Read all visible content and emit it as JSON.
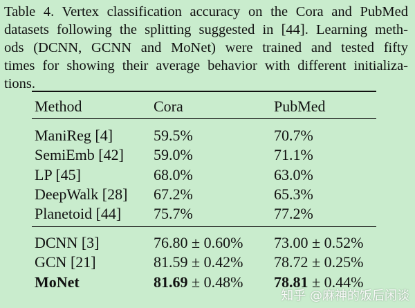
{
  "caption_lines": [
    "Table 4. Vertex classification accuracy on the Cora and PubMed",
    "datasets following the splitting suggested in [44]. Learning meth-",
    "ods (DCNN, GCNN and MoNet) were trained and tested fifty",
    "times for showing their average behavior with different initializa-",
    "tions."
  ],
  "table": {
    "headers": [
      "Method",
      "Cora",
      "PubMed"
    ],
    "group1": [
      {
        "method": "ManiReg [4]",
        "cora": "59.5%",
        "pubmed": "70.7%"
      },
      {
        "method": "SemiEmb [42]",
        "cora": "59.0%",
        "pubmed": "71.1%"
      },
      {
        "method": "LP [45]",
        "cora": "68.0%",
        "pubmed": "63.0%"
      },
      {
        "method": "DeepWalk [28]",
        "cora": "67.2%",
        "pubmed": "65.3%"
      },
      {
        "method": "Planetoid [44]",
        "cora": "75.7%",
        "pubmed": "77.2%"
      }
    ],
    "group2": [
      {
        "method": "DCNN [3]",
        "cora_mean": "76.80",
        "cora_std": "± 0.60%",
        "pubmed_mean": "73.00",
        "pubmed_std": "± 0.52%"
      },
      {
        "method": "GCN [21]",
        "cora_mean": "81.59",
        "cora_std": "± 0.42%",
        "pubmed_mean": "78.72",
        "pubmed_std": "± 0.25%"
      },
      {
        "method": "MoNet",
        "cora_mean": "81.69",
        "cora_std": "± 0.48%",
        "pubmed_mean": "78.81",
        "pubmed_std": "± 0.44%"
      }
    ]
  },
  "watermark": "知乎 @麻神的饭后闲谈"
}
